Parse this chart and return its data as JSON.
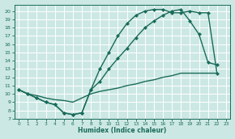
{
  "bg_color": "#cce8e4",
  "grid_color": "#b0d8d4",
  "line_color": "#1a6b5a",
  "xlabel": "Humidex (Indice chaleur)",
  "xlim": [
    -0.5,
    23.5
  ],
  "ylim": [
    7,
    20.8
  ],
  "xticks": [
    0,
    1,
    2,
    3,
    4,
    5,
    6,
    7,
    8,
    9,
    10,
    11,
    12,
    13,
    14,
    15,
    16,
    17,
    18,
    19,
    20,
    21,
    22,
    23
  ],
  "yticks": [
    7,
    8,
    9,
    10,
    11,
    12,
    13,
    14,
    15,
    16,
    17,
    18,
    19,
    20
  ],
  "line1_x": [
    0,
    1,
    2,
    3,
    4,
    5,
    6,
    7,
    8,
    9,
    10,
    11,
    12,
    13,
    14,
    15,
    16,
    17,
    18,
    19,
    20,
    21,
    22
  ],
  "line1_y": [
    10.5,
    10.0,
    9.5,
    9.0,
    8.7,
    7.7,
    7.5,
    7.7,
    10.5,
    13.0,
    15.0,
    17.0,
    18.5,
    19.5,
    20.0,
    20.2,
    20.2,
    19.8,
    19.8,
    20.0,
    19.8,
    19.8,
    12.5
  ],
  "line2_x": [
    0,
    1,
    2,
    3,
    4,
    5,
    6,
    7,
    8,
    9,
    10,
    11,
    12,
    13,
    14,
    15,
    16,
    17,
    18,
    19,
    20,
    21,
    22
  ],
  "line2_y": [
    10.5,
    10.0,
    9.5,
    9.0,
    8.7,
    7.7,
    7.5,
    7.7,
    10.5,
    11.5,
    13.0,
    14.3,
    15.5,
    16.8,
    18.0,
    18.8,
    19.5,
    20.0,
    20.2,
    18.8,
    17.2,
    13.8,
    13.5
  ],
  "line3_x": [
    0,
    1,
    2,
    3,
    4,
    5,
    6,
    7,
    8,
    9,
    10,
    11,
    12,
    13,
    14,
    15,
    16,
    17,
    18,
    19,
    20,
    21,
    22
  ],
  "line3_y": [
    10.5,
    10.0,
    9.8,
    9.5,
    9.3,
    9.2,
    9.0,
    9.5,
    10.0,
    10.3,
    10.5,
    10.7,
    11.0,
    11.2,
    11.5,
    11.7,
    12.0,
    12.2,
    12.5,
    12.5,
    12.5,
    12.5,
    12.5
  ],
  "marker": "D",
  "markersize": 2.5,
  "linewidth": 1.0
}
